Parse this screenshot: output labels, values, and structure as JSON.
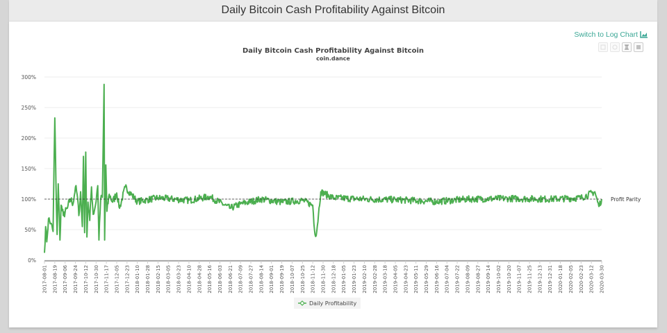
{
  "page": {
    "header_title": "Daily Bitcoin Cash Profitability Against Bitcoin",
    "log_chart_link": "Switch to Log Chart",
    "toolbar_icons": [
      "zoom-in-icon",
      "zoom-reset-icon",
      "restore-icon",
      "menu-icon"
    ]
  },
  "colors": {
    "series": "#4caf50",
    "parity_line": "#333333",
    "link": "#3aa795",
    "grid": "#eeeeee"
  },
  "chart_data": {
    "type": "line",
    "title": "Daily Bitcoin Cash Profitability Against Bitcoin",
    "subtitle": "coin.dance",
    "xlabel": "",
    "ylabel": "",
    "ylim": [
      0,
      300
    ],
    "y_ticks": [
      "0%",
      "50%",
      "100%",
      "150%",
      "200%",
      "250%",
      "300%"
    ],
    "grid": true,
    "legend_position": "bottom",
    "annotations": [
      {
        "type": "hline",
        "y": 100,
        "label": "Profit Parity",
        "style": "dashed"
      }
    ],
    "x_tick_labels": [
      "2017-08-01",
      "2017-08-19",
      "2017-09-06",
      "2017-09-24",
      "2017-10-12",
      "2017-10-30",
      "2017-11-17",
      "2017-12-05",
      "2017-12-23",
      "2018-01-10",
      "2018-01-28",
      "2018-02-15",
      "2018-03-05",
      "2018-03-23",
      "2018-04-10",
      "2018-04-28",
      "2018-05-16",
      "2018-06-03",
      "2018-06-21",
      "2018-07-09",
      "2018-07-27",
      "2018-08-14",
      "2018-09-01",
      "2018-09-19",
      "2018-10-07",
      "2018-10-25",
      "2018-11-12",
      "2018-11-30",
      "2018-12-18",
      "2019-01-05",
      "2019-01-23",
      "2019-02-10",
      "2019-02-28",
      "2019-03-18",
      "2019-04-05",
      "2019-04-23",
      "2019-05-11",
      "2019-05-29",
      "2019-06-16",
      "2019-07-04",
      "2019-07-22",
      "2019-08-09",
      "2019-08-27",
      "2019-09-14",
      "2019-10-02",
      "2019-10-20",
      "2019-11-07",
      "2019-11-25",
      "2019-12-13",
      "2019-12-31",
      "2020-01-18",
      "2020-02-05",
      "2020-02-23",
      "2020-03-12",
      "2020-03-30"
    ],
    "series": [
      {
        "name": "Daily Profitability",
        "unit": "%",
        "keypoints": [
          [
            "2017-08-01",
            12
          ],
          [
            "2017-08-03",
            55
          ],
          [
            "2017-08-05",
            30
          ],
          [
            "2017-08-08",
            68
          ],
          [
            "2017-08-12",
            60
          ],
          [
            "2017-08-16",
            47
          ],
          [
            "2017-08-19",
            233
          ],
          [
            "2017-08-21",
            128
          ],
          [
            "2017-08-23",
            42
          ],
          [
            "2017-08-25",
            125
          ],
          [
            "2017-08-28",
            33
          ],
          [
            "2017-08-30",
            90
          ],
          [
            "2017-09-03",
            73
          ],
          [
            "2017-09-10",
            85
          ],
          [
            "2017-09-15",
            100
          ],
          [
            "2017-09-20",
            93
          ],
          [
            "2017-09-24",
            120
          ],
          [
            "2017-09-27",
            108
          ],
          [
            "2017-09-30",
            73
          ],
          [
            "2017-10-03",
            112
          ],
          [
            "2017-10-06",
            55
          ],
          [
            "2017-10-08",
            170
          ],
          [
            "2017-10-10",
            45
          ],
          [
            "2017-10-12",
            177
          ],
          [
            "2017-10-14",
            38
          ],
          [
            "2017-10-16",
            95
          ],
          [
            "2017-10-19",
            65
          ],
          [
            "2017-10-22",
            120
          ],
          [
            "2017-10-25",
            75
          ],
          [
            "2017-10-29",
            90
          ],
          [
            "2017-11-02",
            122
          ],
          [
            "2017-11-04",
            33
          ],
          [
            "2017-11-07",
            100
          ],
          [
            "2017-11-10",
            103
          ],
          [
            "2017-11-13",
            288
          ],
          [
            "2017-11-14",
            33
          ],
          [
            "2017-11-16",
            156
          ],
          [
            "2017-11-18",
            80
          ],
          [
            "2017-11-22",
            108
          ],
          [
            "2017-11-28",
            95
          ],
          [
            "2017-12-05",
            110
          ],
          [
            "2017-12-10",
            85
          ],
          [
            "2017-12-20",
            120
          ],
          [
            "2018-01-10",
            96
          ],
          [
            "2018-02-15",
            102
          ],
          [
            "2018-04-10",
            98
          ],
          [
            "2018-05-16",
            104
          ],
          [
            "2018-06-21",
            85
          ],
          [
            "2018-07-09",
            92
          ],
          [
            "2018-08-14",
            100
          ],
          [
            "2018-09-19",
            95
          ],
          [
            "2018-10-25",
            98
          ],
          [
            "2018-11-12",
            90
          ],
          [
            "2018-11-15",
            50
          ],
          [
            "2018-11-18",
            40
          ],
          [
            "2018-11-22",
            75
          ],
          [
            "2018-11-26",
            112
          ],
          [
            "2018-12-18",
            102
          ],
          [
            "2019-02-10",
            100
          ],
          [
            "2019-04-05",
            99
          ],
          [
            "2019-06-16",
            96
          ],
          [
            "2019-08-09",
            100
          ],
          [
            "2019-10-20",
            101
          ],
          [
            "2019-12-31",
            100
          ],
          [
            "2020-02-23",
            102
          ],
          [
            "2020-03-18",
            112
          ],
          [
            "2020-03-25",
            88
          ],
          [
            "2020-03-30",
            100
          ]
        ]
      }
    ]
  },
  "legend": {
    "label": "Daily Profitability"
  },
  "annotation_label": "Profit Parity"
}
